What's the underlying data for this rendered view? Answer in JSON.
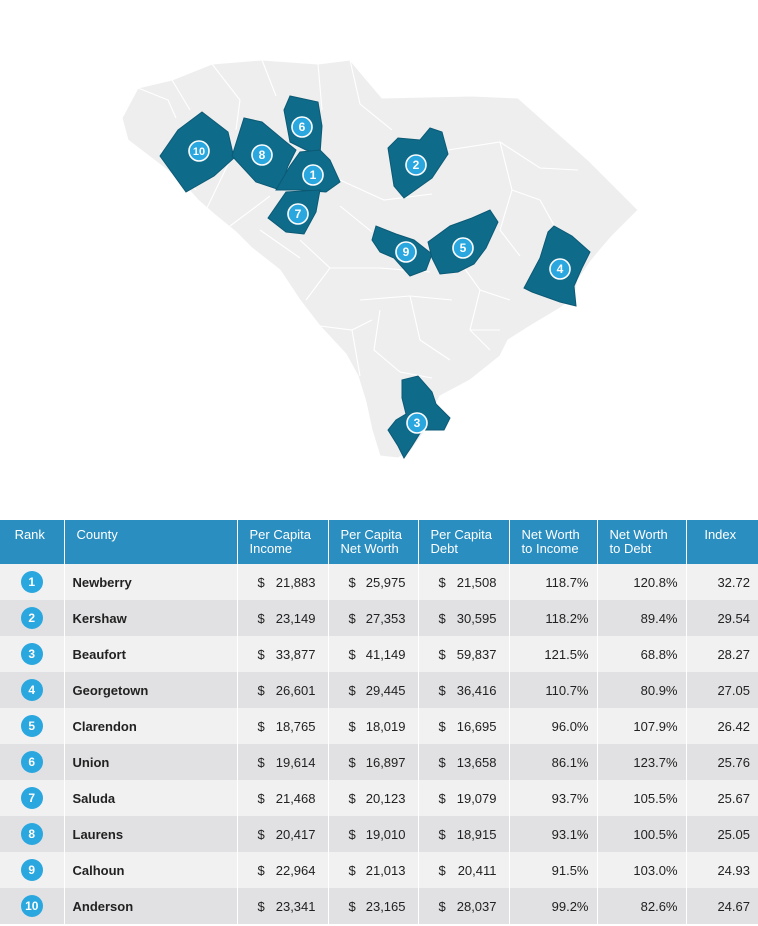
{
  "colors": {
    "highlight": "#0f6b8a",
    "base": "#eeeeef",
    "marker": "#2aa7df",
    "header": "#2b8ec0",
    "row_light": "#f1f1f2",
    "row_dark": "#e1e1e3"
  },
  "map": {
    "markers": [
      "1",
      "2",
      "3",
      "4",
      "5",
      "6",
      "7",
      "8",
      "9",
      "10"
    ]
  },
  "table": {
    "headers": {
      "rank": "Rank",
      "county": "County",
      "income_1": "Per Capita",
      "income_2": "Income",
      "networth_1": "Per Capita",
      "networth_2": "Net Worth",
      "debt_1": "Per Capita",
      "debt_2": "Debt",
      "nwi_1": "Net Worth",
      "nwi_2": "to Income",
      "nwd_1": "Net Worth",
      "nwd_2": "to Debt",
      "index": "Index"
    },
    "rows": [
      {
        "rank": "1",
        "county": "Newberry",
        "income": "21,883",
        "networth": "25,975",
        "debt": "21,508",
        "nwi": "118.7%",
        "nwd": "120.8%",
        "index": "32.72"
      },
      {
        "rank": "2",
        "county": "Kershaw",
        "income": "23,149",
        "networth": "27,353",
        "debt": "30,595",
        "nwi": "118.2%",
        "nwd": "89.4%",
        "index": "29.54"
      },
      {
        "rank": "3",
        "county": "Beaufort",
        "income": "33,877",
        "networth": "41,149",
        "debt": "59,837",
        "nwi": "121.5%",
        "nwd": "68.8%",
        "index": "28.27"
      },
      {
        "rank": "4",
        "county": "Georgetown",
        "income": "26,601",
        "networth": "29,445",
        "debt": "36,416",
        "nwi": "110.7%",
        "nwd": "80.9%",
        "index": "27.05"
      },
      {
        "rank": "5",
        "county": "Clarendon",
        "income": "18,765",
        "networth": "18,019",
        "debt": "16,695",
        "nwi": "96.0%",
        "nwd": "107.9%",
        "index": "26.42"
      },
      {
        "rank": "6",
        "county": "Union",
        "income": "19,614",
        "networth": "16,897",
        "debt": "13,658",
        "nwi": "86.1%",
        "nwd": "123.7%",
        "index": "25.76"
      },
      {
        "rank": "7",
        "county": "Saluda",
        "income": "21,468",
        "networth": "20,123",
        "debt": "19,079",
        "nwi": "93.7%",
        "nwd": "105.5%",
        "index": "25.67"
      },
      {
        "rank": "8",
        "county": "Laurens",
        "income": "20,417",
        "networth": "19,010",
        "debt": "18,915",
        "nwi": "93.1%",
        "nwd": "100.5%",
        "index": "25.05"
      },
      {
        "rank": "9",
        "county": "Calhoun",
        "income": "22,964",
        "networth": "21,013",
        "debt": "20,411",
        "nwi": "91.5%",
        "nwd": "103.0%",
        "index": "24.93"
      },
      {
        "rank": "10",
        "county": "Anderson",
        "income": "23,341",
        "networth": "23,165",
        "debt": "28,037",
        "nwi": "99.2%",
        "nwd": "82.6%",
        "index": "24.67"
      }
    ],
    "currency_symbol": "$"
  }
}
